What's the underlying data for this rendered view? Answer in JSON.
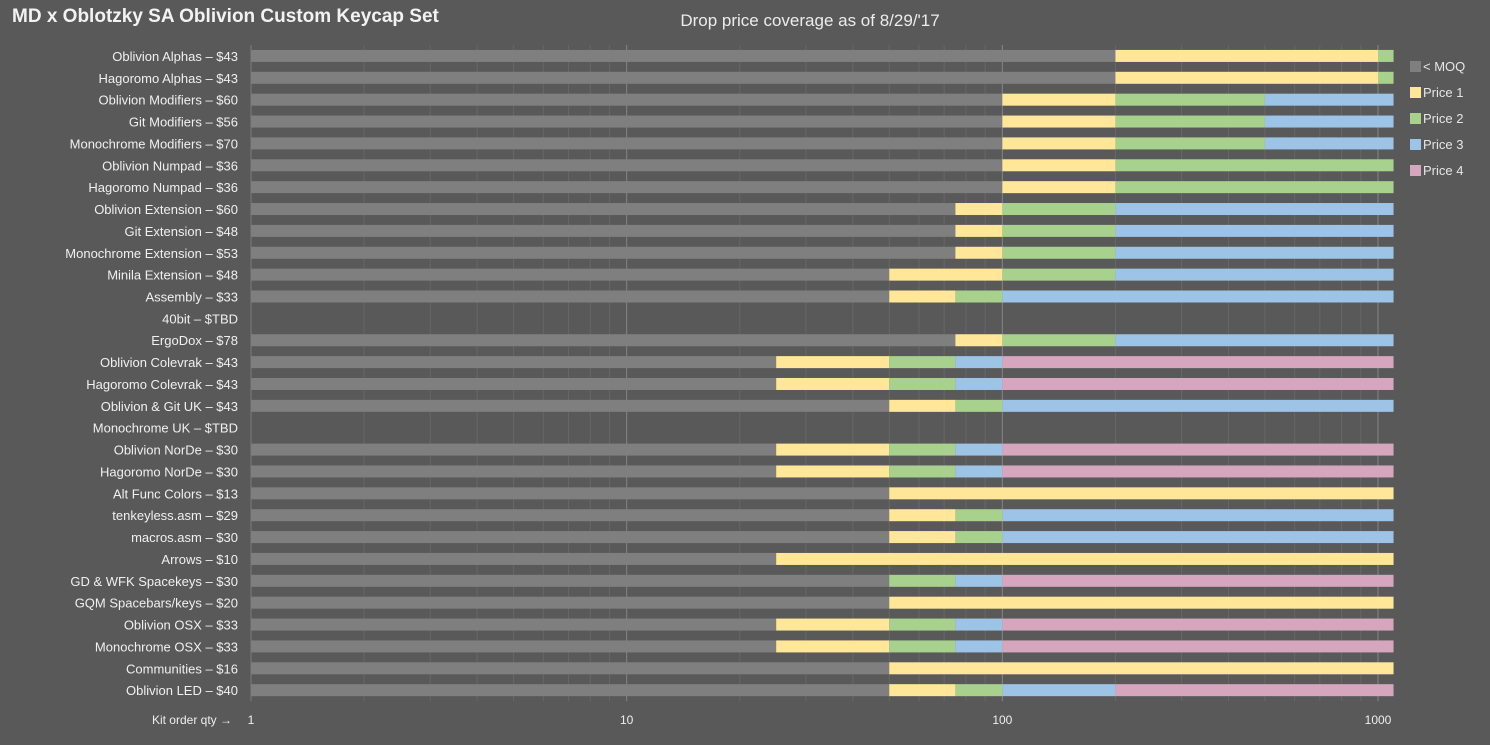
{
  "page": {
    "title": "MD x Oblotzky SA Oblivion Custom  Keycap Set"
  },
  "chart_data": {
    "type": "bar",
    "orientation": "horizontal",
    "stacked": true,
    "x_scale": "log",
    "title": "Drop price coverage as of 8/29/'17",
    "xlabel": "Kit order qty →",
    "xlim": [
      1,
      1100
    ],
    "x_ticks": [
      {
        "value": 1,
        "label": "1"
      },
      {
        "value": 10,
        "label": "10"
      },
      {
        "value": 100,
        "label": "100"
      },
      {
        "value": 1000,
        "label": "1000"
      }
    ],
    "grid": true,
    "legend_position": "right",
    "categories": [
      "Oblivion Alphas – $43",
      "Hagoromo Alphas – $43",
      "Oblivion Modifiers – $60",
      "Git Modifiers – $56",
      "Monochrome Modifiers – $70",
      "Oblivion Numpad – $36",
      "Hagoromo Numpad – $36",
      "Oblivion Extension – $60",
      "Git Extension – $48",
      "Monochrome Extension – $53",
      "Minila Extension – $48",
      "Assembly  – $33",
      "40bit  – $TBD",
      "ErgoDox  – $78",
      "Oblivion Colevrak – $43",
      "Hagoromo Colevrak – $43",
      "Oblivion & Git UK – $43",
      "Monochrome UK – $TBD",
      "Oblivion NorDe – $30",
      "Hagoromo NorDe – $30",
      "Alt Func Colors  – $13",
      "tenkeyless.asm  – $29",
      "macros.asm  – $30",
      "Arrows  – $10",
      "GD & WFK Spacekeys  – $30",
      "GQM Spacebars/keys  – $20",
      "Oblivion OSX – $33",
      "Monochrome OSX – $33",
      "Communities  – $16",
      "Oblivion LED  – $40"
    ],
    "series": [
      {
        "name": "< MOQ",
        "color": "#7f7f7f"
      },
      {
        "name": "Price 1",
        "color": "#ffe699"
      },
      {
        "name": "Price 2",
        "color": "#a9d18e"
      },
      {
        "name": "Price 3",
        "color": "#9dc3e6"
      },
      {
        "name": "Price 4",
        "color": "#d5a6bd"
      }
    ],
    "breakpoints": [
      [
        200,
        1000,
        1100,
        null,
        null
      ],
      [
        200,
        1000,
        1100,
        null,
        null
      ],
      [
        100,
        200,
        500,
        1100,
        null
      ],
      [
        100,
        200,
        500,
        1100,
        null
      ],
      [
        100,
        200,
        500,
        1100,
        null
      ],
      [
        100,
        200,
        1100,
        null,
        null
      ],
      [
        100,
        200,
        1100,
        null,
        null
      ],
      [
        75,
        100,
        200,
        1100,
        null
      ],
      [
        75,
        100,
        200,
        1100,
        null
      ],
      [
        75,
        100,
        200,
        1100,
        null
      ],
      [
        50,
        100,
        200,
        1100,
        null
      ],
      [
        50,
        75,
        100,
        1100,
        null
      ],
      [
        null,
        null,
        null,
        null,
        null
      ],
      [
        75,
        100,
        200,
        1100,
        null
      ],
      [
        25,
        50,
        75,
        100,
        1100
      ],
      [
        25,
        50,
        75,
        100,
        1100
      ],
      [
        50,
        75,
        100,
        1100,
        null
      ],
      [
        null,
        null,
        null,
        null,
        null
      ],
      [
        25,
        50,
        75,
        100,
        1100
      ],
      [
        25,
        50,
        75,
        100,
        1100
      ],
      [
        50,
        1100,
        null,
        null,
        null
      ],
      [
        50,
        75,
        100,
        1100,
        null
      ],
      [
        50,
        75,
        100,
        1100,
        null
      ],
      [
        25,
        1100,
        null,
        null,
        null
      ],
      [
        50,
        null,
        75,
        100,
        1100
      ],
      [
        50,
        1100,
        null,
        null,
        null
      ],
      [
        25,
        50,
        75,
        100,
        1100
      ],
      [
        25,
        50,
        75,
        100,
        1100
      ],
      [
        50,
        1100,
        null,
        null,
        null
      ],
      [
        50,
        75,
        100,
        200,
        1100
      ]
    ]
  }
}
